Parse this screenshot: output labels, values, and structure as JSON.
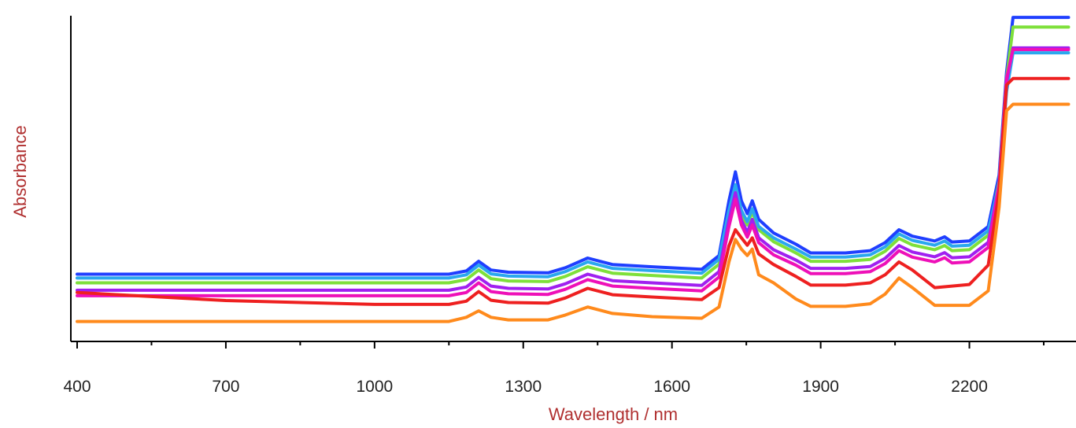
{
  "chart_data": {
    "type": "line",
    "xlabel": "Wavelength / nm",
    "ylabel": "Absorbance",
    "xlim": [
      400,
      2400
    ],
    "ylim": [
      0,
      1.0
    ],
    "x_ticks": [
      400,
      700,
      1000,
      1300,
      1600,
      1900,
      2200
    ],
    "grid": false,
    "legend": "none",
    "axis_title_color": "#b03030",
    "series": [
      {
        "color": "#1f3fff",
        "points": [
          [
            400,
            0.192
          ],
          [
            1150,
            0.192
          ],
          [
            1185,
            0.202
          ],
          [
            1210,
            0.232
          ],
          [
            1235,
            0.205
          ],
          [
            1270,
            0.198
          ],
          [
            1350,
            0.196
          ],
          [
            1385,
            0.212
          ],
          [
            1430,
            0.242
          ],
          [
            1480,
            0.222
          ],
          [
            1560,
            0.215
          ],
          [
            1660,
            0.207
          ],
          [
            1695,
            0.25
          ],
          [
            1715,
            0.42
          ],
          [
            1728,
            0.51
          ],
          [
            1740,
            0.42
          ],
          [
            1752,
            0.38
          ],
          [
            1762,
            0.42
          ],
          [
            1775,
            0.362
          ],
          [
            1805,
            0.32
          ],
          [
            1850,
            0.285
          ],
          [
            1880,
            0.258
          ],
          [
            1950,
            0.258
          ],
          [
            2000,
            0.265
          ],
          [
            2030,
            0.29
          ],
          [
            2058,
            0.33
          ],
          [
            2085,
            0.31
          ],
          [
            2130,
            0.295
          ],
          [
            2150,
            0.308
          ],
          [
            2165,
            0.292
          ],
          [
            2200,
            0.295
          ],
          [
            2238,
            0.34
          ],
          [
            2260,
            0.5
          ],
          [
            2275,
            0.82
          ],
          [
            2288,
            0.99
          ],
          [
            2400,
            0.99
          ]
        ]
      },
      {
        "color": "#7ee03a",
        "points": [
          [
            400,
            0.165
          ],
          [
            1150,
            0.165
          ],
          [
            1185,
            0.175
          ],
          [
            1210,
            0.205
          ],
          [
            1235,
            0.178
          ],
          [
            1270,
            0.171
          ],
          [
            1350,
            0.169
          ],
          [
            1385,
            0.185
          ],
          [
            1430,
            0.215
          ],
          [
            1480,
            0.195
          ],
          [
            1560,
            0.188
          ],
          [
            1660,
            0.18
          ],
          [
            1695,
            0.223
          ],
          [
            1715,
            0.38
          ],
          [
            1728,
            0.46
          ],
          [
            1740,
            0.38
          ],
          [
            1752,
            0.345
          ],
          [
            1762,
            0.385
          ],
          [
            1775,
            0.33
          ],
          [
            1805,
            0.293
          ],
          [
            1850,
            0.258
          ],
          [
            1880,
            0.232
          ],
          [
            1950,
            0.232
          ],
          [
            2000,
            0.238
          ],
          [
            2030,
            0.263
          ],
          [
            2058,
            0.303
          ],
          [
            2085,
            0.283
          ],
          [
            2130,
            0.268
          ],
          [
            2150,
            0.281
          ],
          [
            2165,
            0.265
          ],
          [
            2200,
            0.268
          ],
          [
            2238,
            0.313
          ],
          [
            2260,
            0.48
          ],
          [
            2275,
            0.8
          ],
          [
            2288,
            0.96
          ],
          [
            2400,
            0.96
          ]
        ]
      },
      {
        "color": "#2aa8ee",
        "points": [
          [
            400,
            0.18
          ],
          [
            1150,
            0.18
          ],
          [
            1185,
            0.19
          ],
          [
            1210,
            0.22
          ],
          [
            1235,
            0.193
          ],
          [
            1270,
            0.186
          ],
          [
            1350,
            0.184
          ],
          [
            1385,
            0.2
          ],
          [
            1430,
            0.23
          ],
          [
            1480,
            0.21
          ],
          [
            1560,
            0.203
          ],
          [
            1660,
            0.195
          ],
          [
            1695,
            0.238
          ],
          [
            1715,
            0.39
          ],
          [
            1728,
            0.47
          ],
          [
            1740,
            0.39
          ],
          [
            1752,
            0.355
          ],
          [
            1762,
            0.395
          ],
          [
            1775,
            0.34
          ],
          [
            1805,
            0.305
          ],
          [
            1850,
            0.27
          ],
          [
            1880,
            0.245
          ],
          [
            1950,
            0.245
          ],
          [
            2000,
            0.252
          ],
          [
            2030,
            0.277
          ],
          [
            2058,
            0.317
          ],
          [
            2085,
            0.297
          ],
          [
            2130,
            0.282
          ],
          [
            2150,
            0.295
          ],
          [
            2165,
            0.279
          ],
          [
            2200,
            0.282
          ],
          [
            2238,
            0.327
          ],
          [
            2260,
            0.47
          ],
          [
            2275,
            0.76
          ],
          [
            2288,
            0.88
          ],
          [
            2400,
            0.88
          ]
        ]
      },
      {
        "color": "#a020f0",
        "points": [
          [
            400,
            0.142
          ],
          [
            1150,
            0.142
          ],
          [
            1185,
            0.152
          ],
          [
            1210,
            0.182
          ],
          [
            1235,
            0.155
          ],
          [
            1270,
            0.148
          ],
          [
            1350,
            0.146
          ],
          [
            1385,
            0.162
          ],
          [
            1430,
            0.192
          ],
          [
            1480,
            0.172
          ],
          [
            1560,
            0.165
          ],
          [
            1660,
            0.157
          ],
          [
            1695,
            0.2
          ],
          [
            1715,
            0.36
          ],
          [
            1728,
            0.445
          ],
          [
            1740,
            0.36
          ],
          [
            1752,
            0.322
          ],
          [
            1762,
            0.362
          ],
          [
            1775,
            0.305
          ],
          [
            1805,
            0.268
          ],
          [
            1850,
            0.236
          ],
          [
            1880,
            0.21
          ],
          [
            1950,
            0.21
          ],
          [
            2000,
            0.216
          ],
          [
            2030,
            0.241
          ],
          [
            2058,
            0.281
          ],
          [
            2085,
            0.261
          ],
          [
            2130,
            0.246
          ],
          [
            2150,
            0.259
          ],
          [
            2165,
            0.243
          ],
          [
            2200,
            0.246
          ],
          [
            2238,
            0.291
          ],
          [
            2260,
            0.47
          ],
          [
            2275,
            0.79
          ],
          [
            2288,
            0.895
          ],
          [
            2400,
            0.895
          ]
        ]
      },
      {
        "color": "#ee10b8",
        "points": [
          [
            400,
            0.125
          ],
          [
            1150,
            0.125
          ],
          [
            1185,
            0.135
          ],
          [
            1210,
            0.165
          ],
          [
            1235,
            0.138
          ],
          [
            1270,
            0.131
          ],
          [
            1350,
            0.129
          ],
          [
            1385,
            0.145
          ],
          [
            1430,
            0.175
          ],
          [
            1480,
            0.155
          ],
          [
            1560,
            0.148
          ],
          [
            1660,
            0.14
          ],
          [
            1695,
            0.183
          ],
          [
            1715,
            0.34
          ],
          [
            1728,
            0.425
          ],
          [
            1740,
            0.345
          ],
          [
            1752,
            0.307
          ],
          [
            1762,
            0.345
          ],
          [
            1775,
            0.29
          ],
          [
            1805,
            0.252
          ],
          [
            1850,
            0.22
          ],
          [
            1880,
            0.194
          ],
          [
            1950,
            0.194
          ],
          [
            2000,
            0.2
          ],
          [
            2030,
            0.225
          ],
          [
            2058,
            0.265
          ],
          [
            2085,
            0.245
          ],
          [
            2130,
            0.23
          ],
          [
            2150,
            0.243
          ],
          [
            2165,
            0.227
          ],
          [
            2200,
            0.23
          ],
          [
            2238,
            0.275
          ],
          [
            2260,
            0.47
          ],
          [
            2275,
            0.8
          ],
          [
            2288,
            0.89
          ],
          [
            2400,
            0.89
          ]
        ]
      },
      {
        "color": "#ee2020",
        "points": [
          [
            400,
            0.135
          ],
          [
            700,
            0.11
          ],
          [
            1000,
            0.098
          ],
          [
            1150,
            0.098
          ],
          [
            1185,
            0.108
          ],
          [
            1210,
            0.138
          ],
          [
            1235,
            0.111
          ],
          [
            1270,
            0.104
          ],
          [
            1350,
            0.102
          ],
          [
            1385,
            0.118
          ],
          [
            1430,
            0.148
          ],
          [
            1480,
            0.128
          ],
          [
            1560,
            0.121
          ],
          [
            1660,
            0.113
          ],
          [
            1695,
            0.15
          ],
          [
            1715,
            0.28
          ],
          [
            1728,
            0.33
          ],
          [
            1740,
            0.305
          ],
          [
            1752,
            0.282
          ],
          [
            1762,
            0.305
          ],
          [
            1775,
            0.255
          ],
          [
            1805,
            0.222
          ],
          [
            1850,
            0.185
          ],
          [
            1880,
            0.158
          ],
          [
            1950,
            0.158
          ],
          [
            2000,
            0.165
          ],
          [
            2030,
            0.19
          ],
          [
            2058,
            0.23
          ],
          [
            2085,
            0.205
          ],
          [
            2130,
            0.15
          ],
          [
            2200,
            0.16
          ],
          [
            2238,
            0.22
          ],
          [
            2260,
            0.45
          ],
          [
            2275,
            0.78
          ],
          [
            2288,
            0.8
          ],
          [
            2400,
            0.8
          ]
        ]
      },
      {
        "color": "#ff8a1c",
        "points": [
          [
            400,
            0.045
          ],
          [
            1150,
            0.045
          ],
          [
            1185,
            0.058
          ],
          [
            1210,
            0.078
          ],
          [
            1235,
            0.058
          ],
          [
            1270,
            0.05
          ],
          [
            1350,
            0.05
          ],
          [
            1385,
            0.065
          ],
          [
            1430,
            0.09
          ],
          [
            1480,
            0.07
          ],
          [
            1560,
            0.06
          ],
          [
            1660,
            0.055
          ],
          [
            1695,
            0.09
          ],
          [
            1715,
            0.23
          ],
          [
            1728,
            0.3
          ],
          [
            1740,
            0.27
          ],
          [
            1752,
            0.25
          ],
          [
            1762,
            0.27
          ],
          [
            1775,
            0.19
          ],
          [
            1805,
            0.165
          ],
          [
            1850,
            0.115
          ],
          [
            1880,
            0.092
          ],
          [
            1950,
            0.092
          ],
          [
            2000,
            0.1
          ],
          [
            2030,
            0.13
          ],
          [
            2058,
            0.18
          ],
          [
            2085,
            0.15
          ],
          [
            2130,
            0.095
          ],
          [
            2200,
            0.095
          ],
          [
            2238,
            0.14
          ],
          [
            2260,
            0.4
          ],
          [
            2275,
            0.7
          ],
          [
            2288,
            0.72
          ],
          [
            2400,
            0.72
          ]
        ]
      }
    ]
  }
}
